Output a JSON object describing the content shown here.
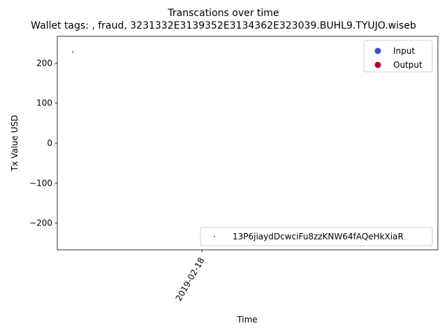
{
  "chart_data": {
    "type": "scatter",
    "title": "Transcations over time",
    "subtitle": "Wallet tags: , fraud, 3231332E3139352E3134362E323039.BUHL9.TYUJO.wiseb",
    "xlabel": "Time",
    "ylabel": "Tx Value USD",
    "x_ticks": [
      "2019-02-18"
    ],
    "ylim": [
      -267,
      267
    ],
    "y_ticks": [
      -200,
      -100,
      0,
      100,
      200
    ],
    "grid": false,
    "points": [
      {
        "x": "2019-02-17",
        "y": 228,
        "series": "Output",
        "color": "#b40426"
      }
    ],
    "legend": {
      "placement": "upper right",
      "entries": [
        {
          "label": "Input",
          "color": "#3b4cc0"
        },
        {
          "label": "Output",
          "color": "#b40426"
        }
      ]
    },
    "legend2": {
      "placement": "lower right",
      "entries": [
        {
          "label": "13P6jiaydDcwciFu8zzKNW64fAQeHkXiaR",
          "color": "#1f77b4"
        }
      ]
    }
  }
}
